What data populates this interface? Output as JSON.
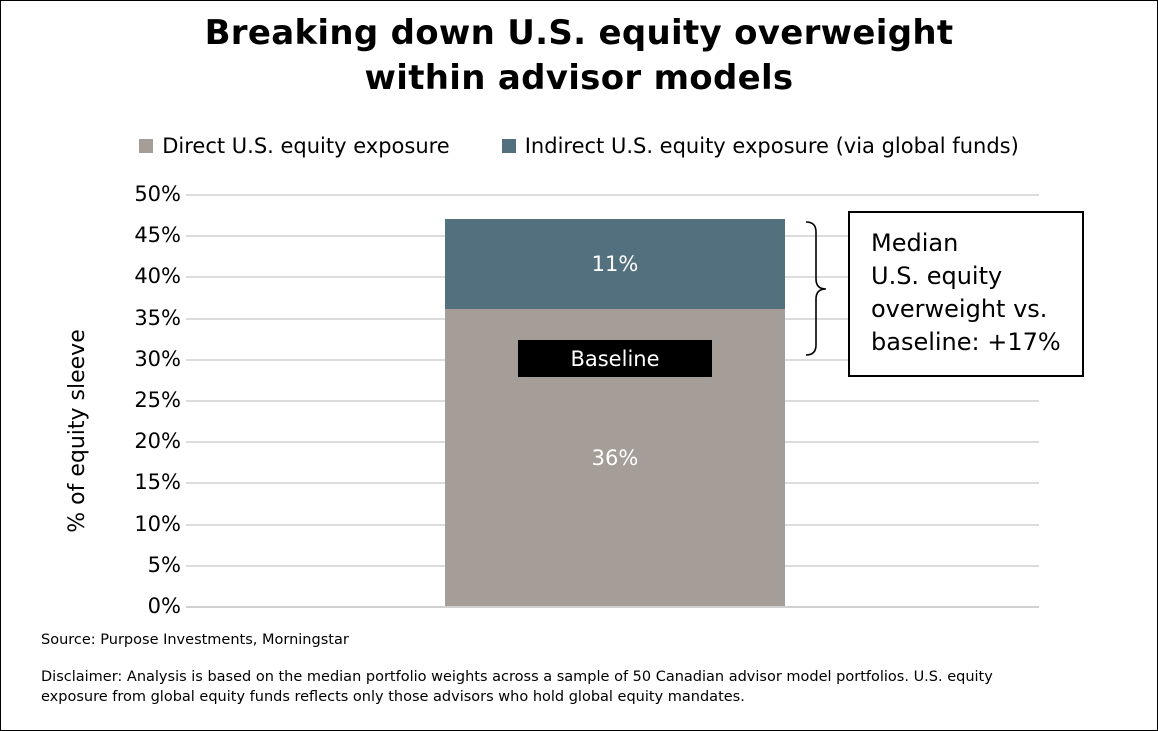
{
  "title": {
    "line1": "Breaking down U.S. equity overweight",
    "line2": "within advisor models"
  },
  "legend": [
    {
      "label": "Direct U.S. equity exposure",
      "color": "#a49d98"
    },
    {
      "label": "Indirect U.S. equity exposure (via global funds)",
      "color": "#53707e"
    }
  ],
  "y_axis": {
    "title": "% of equity sleeve",
    "ticks": [
      "50%",
      "45%",
      "40%",
      "35%",
      "30%",
      "25%",
      "20%",
      "15%",
      "10%",
      "5%",
      "0%"
    ]
  },
  "baseline_label": "Baseline",
  "annotation": {
    "lines": [
      "Median",
      "U.S. equity",
      "overweight vs.",
      "baseline: +17%"
    ]
  },
  "source": "Source: Purpose Investments, Morningstar",
  "disclaimer": "Disclaimer: Analysis is based on the median portfolio weights across a sample of 50 Canadian advisor model portfolios. U.S. equity exposure from global equity funds reflects only those advisors who hold global equity mandates.",
  "chart_data": {
    "type": "bar",
    "subtype": "stacked-single-column",
    "categories": [
      ""
    ],
    "series": [
      {
        "name": "Direct U.S. equity exposure",
        "values": [
          36
        ],
        "label": "36%",
        "color": "#a49d98"
      },
      {
        "name": "Indirect U.S. equity exposure (via global funds)",
        "values": [
          11
        ],
        "label": "11%",
        "color": "#53707e"
      }
    ],
    "total_stack_value": 47,
    "baseline_value": 30,
    "overweight_vs_baseline": "+17%",
    "title": "Breaking down U.S. equity overweight within advisor models",
    "xlabel": "",
    "ylabel": "% of equity sleeve",
    "ylim": [
      0,
      50
    ],
    "ytick_step": 5,
    "grid": true,
    "legend_position": "top",
    "annotation_text": "Median U.S. equity overweight vs. baseline: +17%",
    "baseline_tag": "Baseline"
  }
}
